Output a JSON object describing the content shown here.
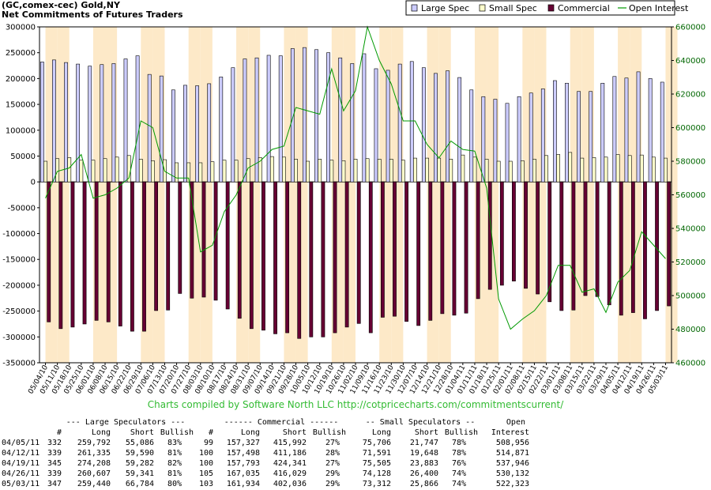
{
  "titles": {
    "line1": "(GC,comex-cec) Gold,NY",
    "line2": "Net Commitments of Futures Traders"
  },
  "legend": {
    "items": [
      {
        "label": "Large Spec",
        "color": "#ccccff",
        "kind": "bar"
      },
      {
        "label": "Small Spec",
        "color": "#ffffcc",
        "kind": "bar"
      },
      {
        "label": "Commercial",
        "color": "#660033",
        "kind": "bar"
      },
      {
        "label": "Open Interest",
        "color": "#009900",
        "kind": "line"
      }
    ]
  },
  "footer": {
    "credit": "Charts compiled by Software North LLC  http://cotpricecharts.com/commitmentscurrent/"
  },
  "colors": {
    "stripe": "#fde9c8",
    "credit": "#33bb33",
    "axis_text": "#000000",
    "right_axis_text": "#006600"
  },
  "chart_data": {
    "type": "bar",
    "x_labels": [
      "05/04/10",
      "05/11/10",
      "05/18/10",
      "05/25/10",
      "06/01/10",
      "06/08/10",
      "06/15/10",
      "06/22/10",
      "06/29/10",
      "07/06/10",
      "07/13/10",
      "07/20/10",
      "07/27/10",
      "08/03/10",
      "08/10/10",
      "08/17/10",
      "08/24/10",
      "08/31/10",
      "09/07/10",
      "09/14/10",
      "09/21/10",
      "09/28/10",
      "10/05/10",
      "10/12/10",
      "10/19/10",
      "10/26/10",
      "11/02/10",
      "11/09/10",
      "11/16/10",
      "11/23/10",
      "11/30/10",
      "12/07/10",
      "12/14/10",
      "12/21/10",
      "12/28/10",
      "01/04/11",
      "01/11/11",
      "01/18/11",
      "01/25/11",
      "02/01/11",
      "02/08/11",
      "02/15/11",
      "02/22/11",
      "03/01/11",
      "03/08/11",
      "03/15/11",
      "03/22/11",
      "03/29/11",
      "04/05/11",
      "04/12/11",
      "04/19/11",
      "04/26/11",
      "05/03/11"
    ],
    "left_axis": {
      "min": -350000,
      "max": 300000,
      "step": 50000
    },
    "right_axis": {
      "min": 460000,
      "max": 660000,
      "step": 20000
    },
    "series": [
      {
        "name": "Large Spec",
        "axis": "left",
        "values": [
          232000,
          236000,
          231000,
          228000,
          224000,
          227000,
          229000,
          238000,
          244000,
          208000,
          205000,
          178000,
          187000,
          186000,
          190000,
          203000,
          221000,
          238000,
          240000,
          245000,
          244000,
          258000,
          260000,
          256000,
          250000,
          240000,
          229000,
          248000,
          219000,
          216000,
          228000,
          233000,
          221000,
          210000,
          215000,
          202000,
          178000,
          165000,
          160000,
          152000,
          165000,
          172000,
          180000,
          196000,
          191000,
          175000,
          175000,
          191000,
          204000,
          201000,
          213000,
          200000,
          193000
        ]
      },
      {
        "name": "Small Spec",
        "axis": "left",
        "values": [
          40000,
          45000,
          47000,
          42000,
          42000,
          45000,
          48000,
          51000,
          44000,
          41000,
          43000,
          37000,
          37000,
          37000,
          39000,
          42000,
          42000,
          45000,
          47000,
          49000,
          48000,
          44000,
          40000,
          44000,
          42000,
          41000,
          44000,
          45000,
          44000,
          44000,
          42000,
          46000,
          46000,
          46000,
          44000,
          52000,
          48000,
          44000,
          40000,
          40000,
          41000,
          44000,
          51000,
          53000,
          57000,
          46000,
          47000,
          48000,
          53000,
          51000,
          52000,
          48000,
          46000
        ]
      },
      {
        "name": "Commercial",
        "axis": "left",
        "values": [
          -271000,
          -284000,
          -281000,
          -275000,
          -268000,
          -271000,
          -279000,
          -289000,
          -289000,
          -249000,
          -248000,
          -216000,
          -225000,
          -223000,
          -229000,
          -246000,
          -264000,
          -284000,
          -287000,
          -294000,
          -292000,
          -303000,
          -300000,
          -300000,
          -292000,
          -281000,
          -274000,
          -292000,
          -262000,
          -260000,
          -270000,
          -278000,
          -268000,
          -255000,
          -258000,
          -254000,
          -226000,
          -208000,
          -200000,
          -192000,
          -206000,
          -217000,
          -232000,
          -249000,
          -248000,
          -220000,
          -222000,
          -238000,
          -258000,
          -253000,
          -265000,
          -249000,
          -240000
        ]
      },
      {
        "name": "Open Interest",
        "axis": "right",
        "values": [
          558000,
          574000,
          576000,
          584000,
          558000,
          560000,
          564000,
          570000,
          604000,
          600000,
          574000,
          570000,
          570000,
          526000,
          530000,
          550000,
          560000,
          576000,
          580000,
          587000,
          589000,
          612000,
          610000,
          608000,
          635000,
          610000,
          622000,
          660000,
          640000,
          626000,
          604000,
          604000,
          590000,
          582000,
          592000,
          587000,
          586000,
          564000,
          498000,
          480000,
          486000,
          491000,
          500000,
          518000,
          518000,
          502000,
          504000,
          490000,
          508000,
          515000,
          538000,
          530000,
          522000
        ]
      }
    ]
  },
  "stats_table": {
    "group_headers": {
      "large": "--- Large Speculators ---",
      "commercial": "------ Commercial ------",
      "small": "-- Small Speculators --",
      "open": "Open"
    },
    "column_headers": {
      "num": "#",
      "long": "Long",
      "short": "Short",
      "bullish": "Bullish",
      "num2": "#",
      "long2": "Long",
      "short2": "Short",
      "bullish2": "Bullish",
      "long3": "Long",
      "short3": "Short",
      "bullish3": "Bullish",
      "interest": "Interest"
    },
    "rows": [
      [
        "04/05/11",
        "332",
        "259,792",
        "55,086",
        "83%",
        "99",
        "157,327",
        "415,992",
        "27%",
        "75,706",
        "21,747",
        "78%",
        "508,956"
      ],
      [
        "04/12/11",
        "339",
        "261,335",
        "59,590",
        "81%",
        "100",
        "157,498",
        "411,186",
        "28%",
        "71,591",
        "19,648",
        "78%",
        "514,871"
      ],
      [
        "04/19/11",
        "345",
        "274,208",
        "59,282",
        "82%",
        "100",
        "157,793",
        "424,341",
        "27%",
        "75,505",
        "23,883",
        "76%",
        "537,946"
      ],
      [
        "04/26/11",
        "339",
        "260,607",
        "59,341",
        "81%",
        "105",
        "167,035",
        "416,029",
        "29%",
        "74,128",
        "26,400",
        "74%",
        "530,132"
      ],
      [
        "05/03/11",
        "347",
        "259,440",
        "66,784",
        "80%",
        "103",
        "161,934",
        "402,036",
        "29%",
        "73,312",
        "25,866",
        "74%",
        "522,323"
      ]
    ]
  }
}
